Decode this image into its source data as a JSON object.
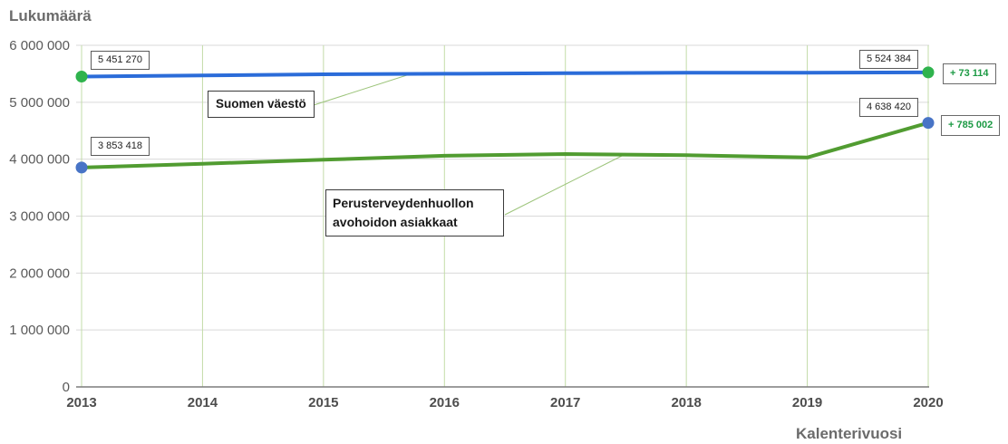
{
  "chart_data": {
    "type": "line",
    "ylabel": "Lukumäärä",
    "xlabel": "Kalenterivuosi",
    "x": [
      "2013",
      "2014",
      "2015",
      "2016",
      "2017",
      "2018",
      "2019",
      "2020"
    ],
    "y_ticks": [
      "0",
      "1 000 000",
      "2 000 000",
      "3 000 000",
      "4 000 000",
      "5 000 000",
      "6 000 000"
    ],
    "ylim": [
      0,
      6000000
    ],
    "grid": true,
    "series": [
      {
        "name": "Suomen väestö",
        "color": "#2b6cd9",
        "marker_color": "#2fb34d",
        "values": [
          5451270,
          5470000,
          5490000,
          5500000,
          5510000,
          5520000,
          5520000,
          5524384
        ]
      },
      {
        "name": "Perusterveydenhuollon avohoidon asiakkaat",
        "color": "#519c31",
        "marker_color": "#4874c6",
        "values": [
          3853418,
          3920000,
          3990000,
          4060000,
          4090000,
          4070000,
          4030000,
          4638420
        ]
      }
    ],
    "data_labels": {
      "population_2013": "5 451 270",
      "population_2020": "5 524 384",
      "population_change": "+ 73 114",
      "clients_2013": "3 853 418",
      "clients_2020": "4 638 420",
      "clients_change": "+ 785 002"
    },
    "change_color": "#1c9a44"
  }
}
